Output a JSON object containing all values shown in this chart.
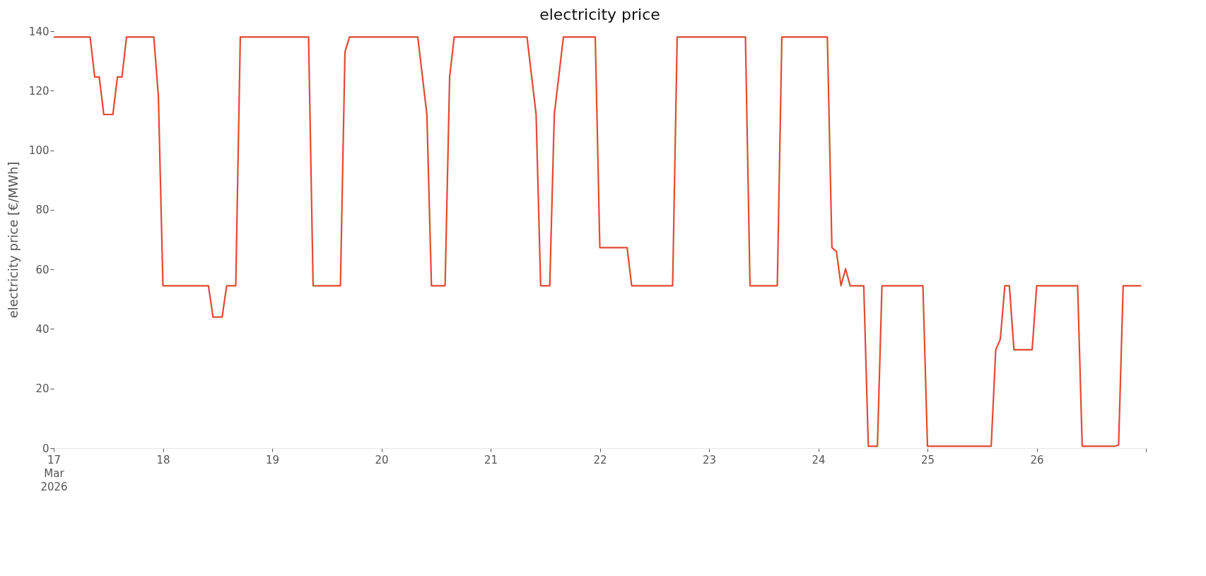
{
  "chart_data": {
    "type": "line",
    "title": "electricity price",
    "ylabel": "electricity price [€/MWh]",
    "x": [
      "2026-03-17T00:00",
      "2026-03-17T08:00",
      "2026-03-17T09:00",
      "2026-03-17T10:00",
      "2026-03-17T11:00",
      "2026-03-17T13:00",
      "2026-03-17T14:00",
      "2026-03-17T15:00",
      "2026-03-17T16:00",
      "2026-03-17T22:00",
      "2026-03-17T23:00",
      "2026-03-18T00:00",
      "2026-03-18T10:00",
      "2026-03-18T11:00",
      "2026-03-18T13:00",
      "2026-03-18T14:00",
      "2026-03-18T16:00",
      "2026-03-18T17:00",
      "2026-03-19T08:00",
      "2026-03-19T09:00",
      "2026-03-19T15:00",
      "2026-03-19T16:00",
      "2026-03-19T17:00",
      "2026-03-20T08:00",
      "2026-03-20T10:00",
      "2026-03-20T11:00",
      "2026-03-20T14:00",
      "2026-03-20T15:00",
      "2026-03-20T16:00",
      "2026-03-21T08:00",
      "2026-03-21T10:00",
      "2026-03-21T11:00",
      "2026-03-21T13:00",
      "2026-03-21T14:00",
      "2026-03-21T16:00",
      "2026-03-21T23:00",
      "2026-03-22T00:00",
      "2026-03-22T06:00",
      "2026-03-22T07:00",
      "2026-03-22T16:00",
      "2026-03-22T17:00",
      "2026-03-23T08:00",
      "2026-03-23T09:00",
      "2026-03-23T15:00",
      "2026-03-23T16:00",
      "2026-03-24T02:00",
      "2026-03-24T03:00",
      "2026-03-24T04:00",
      "2026-03-24T05:00",
      "2026-03-24T06:00",
      "2026-03-24T07:00",
      "2026-03-24T10:00",
      "2026-03-24T11:00",
      "2026-03-24T13:00",
      "2026-03-24T14:00",
      "2026-03-24T23:00",
      "2026-03-25T00:00",
      "2026-03-25T14:00",
      "2026-03-25T15:00",
      "2026-03-25T16:00",
      "2026-03-25T17:00",
      "2026-03-25T18:00",
      "2026-03-25T19:00",
      "2026-03-25T23:00",
      "2026-03-26T00:00",
      "2026-03-26T09:00",
      "2026-03-26T10:00",
      "2026-03-26T17:00",
      "2026-03-26T18:00",
      "2026-03-26T19:00",
      "2026-03-26T23:00"
    ],
    "series": [
      {
        "color": "#e24a33",
        "values": [
          138,
          138,
          124.6,
          124.6,
          112,
          112,
          124.6,
          124.6,
          138,
          138,
          118,
          54.5,
          54.5,
          44,
          44,
          54.5,
          54.5,
          138,
          138,
          54.5,
          54.5,
          133,
          138,
          138,
          112,
          54.5,
          54.5,
          124.6,
          138,
          138,
          112,
          54.5,
          54.5,
          112,
          138,
          138,
          67.3,
          67.3,
          54.5,
          54.5,
          138,
          138,
          54.5,
          54.5,
          138,
          138,
          67.3,
          66,
          54.5,
          60.2,
          54.5,
          54.5,
          0.6,
          0.6,
          54.5,
          54.5,
          0.6,
          0.6,
          33,
          36.5,
          54.5,
          54.5,
          33,
          33,
          54.5,
          54.5,
          0.6,
          0.6,
          1,
          54.5,
          54.5
        ]
      }
    ],
    "xlim": [
      "2026-03-17T00:00",
      "2026-03-27T00:00"
    ],
    "xticks": [
      {
        "value": "2026-03-17T00:00",
        "label": "17\nMar\n2026"
      },
      {
        "value": "2026-03-18T00:00",
        "label": "18"
      },
      {
        "value": "2026-03-19T00:00",
        "label": "19"
      },
      {
        "value": "2026-03-20T00:00",
        "label": "20"
      },
      {
        "value": "2026-03-21T00:00",
        "label": "21"
      },
      {
        "value": "2026-03-22T00:00",
        "label": "22"
      },
      {
        "value": "2026-03-23T00:00",
        "label": "23"
      },
      {
        "value": "2026-03-24T00:00",
        "label": "24"
      },
      {
        "value": "2026-03-25T00:00",
        "label": "25"
      },
      {
        "value": "2026-03-26T00:00",
        "label": "26"
      },
      {
        "value": "2026-03-27T00:00",
        "label": null
      }
    ],
    "ylim": [
      0,
      140
    ],
    "yticks": [
      0,
      20,
      40,
      60,
      80,
      100,
      120,
      140
    ],
    "grid": false,
    "legend": false,
    "marker": "none",
    "line_style": "solid"
  }
}
